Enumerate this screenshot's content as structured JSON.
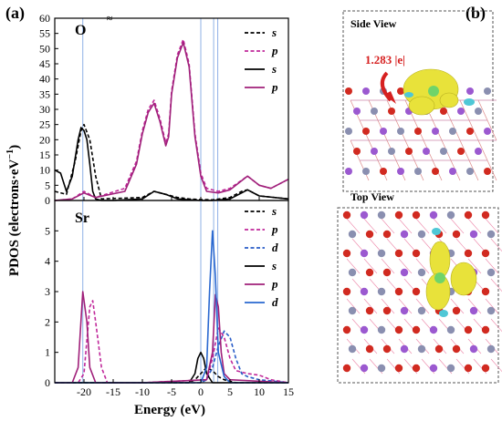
{
  "figure": {
    "label_a": "(a)",
    "label_b": "(b)"
  },
  "chart_data": [
    {
      "type": "line",
      "panel": "O",
      "xlim": [
        -25,
        15
      ],
      "ylim": [
        0,
        60
      ],
      "yticks": [
        0,
        5,
        10,
        15,
        20,
        25,
        30,
        35,
        40,
        45,
        50,
        55,
        60
      ],
      "xticks": [
        -20,
        -15,
        -10,
        -5,
        0,
        5,
        10,
        15
      ],
      "vlines": [
        -20.2,
        0,
        2.2,
        2.9
      ],
      "series": [
        {
          "name": "s",
          "style": "dashed",
          "color": "#000000",
          "x": [
            -25,
            -23,
            -21.5,
            -20.5,
            -20,
            -19,
            -18,
            -17,
            -10,
            -8,
            -6,
            -4,
            -2,
            0,
            2,
            5,
            7,
            8,
            10,
            15
          ],
          "y": [
            3,
            2,
            13,
            23,
            25,
            20,
            8,
            0.5,
            1,
            3,
            2,
            1,
            0.5,
            0.3,
            0.2,
            1,
            3,
            3.5,
            1.5,
            0.5
          ]
        },
        {
          "name": "p",
          "style": "dashed",
          "color": "#c0289a",
          "x": [
            -25,
            -22,
            -20,
            -18,
            -13,
            -11,
            -10,
            -9,
            -8,
            -7,
            -6,
            -5.5,
            -5,
            -4,
            -3,
            -2,
            -1,
            0,
            1,
            3,
            5,
            8,
            10,
            12,
            15
          ],
          "y": [
            0,
            0.5,
            3,
            1,
            4,
            13,
            23,
            30,
            33,
            27,
            19,
            22,
            36,
            48,
            53,
            45,
            22,
            9,
            4,
            3,
            4,
            8,
            5,
            4,
            7
          ]
        },
        {
          "name": "s",
          "style": "solid",
          "color": "#000000",
          "x": [
            -25,
            -24,
            -23,
            -22,
            -21,
            -20.5,
            -20,
            -19.5,
            -19,
            -18.5,
            -18,
            -17,
            -15,
            -10,
            -8,
            -6,
            -4,
            0,
            2,
            5,
            7,
            8,
            10,
            15
          ],
          "y": [
            10,
            9,
            3,
            8,
            20,
            24,
            23,
            20,
            12,
            3,
            0.5,
            0,
            0,
            0.5,
            3,
            2,
            0.5,
            0,
            0,
            0.5,
            2.5,
            3.5,
            1.5,
            0.5
          ]
        },
        {
          "name": "p",
          "style": "solid",
          "color": "#a0207a",
          "x": [
            -25,
            -22,
            -20,
            -18,
            -13,
            -11,
            -10,
            -9,
            -8,
            -7,
            -6,
            -5.5,
            -5,
            -4,
            -3,
            -2,
            -1,
            0,
            1,
            3,
            5,
            8,
            10,
            12,
            15
          ],
          "y": [
            0,
            0.5,
            2.5,
            1,
            3,
            12,
            22,
            29,
            32,
            26,
            18,
            21,
            35,
            47,
            52,
            44,
            21,
            8,
            3,
            2.5,
            3.5,
            8,
            5,
            4,
            7
          ]
        }
      ]
    },
    {
      "type": "line",
      "panel": "Sr",
      "xlim": [
        -25,
        15
      ],
      "ylim": [
        0,
        6
      ],
      "yticks": [
        0,
        1,
        2,
        3,
        4,
        5,
        6
      ],
      "xticks": [
        -20,
        -15,
        -10,
        -5,
        0,
        5,
        10,
        15
      ],
      "xlabel": "Energy (eV)",
      "vlines": [
        -20.2,
        0,
        2.2,
        2.9
      ],
      "series": [
        {
          "name": "s",
          "style": "dashed",
          "color": "#000000",
          "x": [
            -25,
            -2,
            -1,
            0,
            1,
            2,
            3,
            4,
            6,
            15
          ],
          "y": [
            0,
            0,
            0.1,
            0.3,
            0.5,
            0.4,
            0.2,
            0.1,
            0,
            0
          ]
        },
        {
          "name": "p",
          "style": "dashed",
          "color": "#c0289a",
          "x": [
            -25,
            -21,
            -20,
            -19,
            -18.5,
            -18,
            -17,
            -16,
            -10,
            1,
            2,
            3,
            4,
            5,
            6,
            8,
            10,
            12,
            15
          ],
          "y": [
            0,
            0,
            0.3,
            2.5,
            2.7,
            2,
            0.5,
            0,
            0,
            0.1,
            0.8,
            1.8,
            1.5,
            0.8,
            0.4,
            0.3,
            0.25,
            0.1,
            0
          ]
        },
        {
          "name": "d",
          "style": "dashed",
          "color": "#2a5dc8",
          "x": [
            -25,
            0,
            1,
            2,
            3,
            4,
            5,
            6,
            7,
            8,
            10,
            15
          ],
          "y": [
            0,
            0,
            0.1,
            0.5,
            1.2,
            1.7,
            1.5,
            0.8,
            0.3,
            0.2,
            0.1,
            0
          ]
        },
        {
          "name": "s",
          "style": "solid",
          "color": "#000000",
          "x": [
            -25,
            -2,
            -1,
            -0.5,
            0,
            0.5,
            1,
            2,
            3,
            15
          ],
          "y": [
            0,
            0,
            0.3,
            0.8,
            1,
            0.8,
            0.3,
            0,
            0,
            0
          ]
        },
        {
          "name": "p",
          "style": "solid",
          "color": "#a0207a",
          "x": [
            -25,
            -22,
            -21,
            -20.2,
            -19.5,
            -19,
            -18,
            -10,
            1,
            2,
            2.5,
            3,
            3.5,
            4,
            5,
            15
          ],
          "y": [
            0,
            0,
            0.5,
            3,
            2,
            0.5,
            0,
            0,
            0.1,
            1,
            2.9,
            2.5,
            1,
            0.3,
            0.1,
            0
          ]
        },
        {
          "name": "d",
          "style": "solid",
          "color": "#2a68d0",
          "x": [
            -25,
            0,
            1,
            1.5,
            2,
            2.5,
            3,
            4,
            5,
            15
          ],
          "y": [
            0,
            0,
            0.5,
            3,
            5,
            3.5,
            1,
            0.2,
            0,
            0
          ]
        }
      ]
    }
  ],
  "axes": {
    "ylabel": "PDOS (electrons·eV",
    "ylabel_sup": "−1",
    "ylabel_close": ")",
    "xlabel": "Energy (eV)",
    "panel_O": "O",
    "panel_Sr": "Sr",
    "top_break": "≈",
    "o_yticks": [
      "0",
      "5",
      "10",
      "15",
      "20",
      "25",
      "30",
      "35",
      "40",
      "45",
      "50",
      "55",
      "60"
    ],
    "sr_yticks": [
      "0",
      "1",
      "2",
      "3",
      "4",
      "5"
    ],
    "xticks": [
      "-20",
      "-15",
      "-10",
      "-5",
      "0",
      "5",
      "10",
      "15"
    ]
  },
  "legend_O": [
    {
      "label": "s",
      "style": "dashed",
      "color": "#000000"
    },
    {
      "label": "p",
      "style": "dashed",
      "color": "#c0289a"
    },
    {
      "label": "s",
      "style": "solid",
      "color": "#000000"
    },
    {
      "label": "p",
      "style": "solid",
      "color": "#a0207a"
    }
  ],
  "legend_Sr": [
    {
      "label": "s",
      "style": "dashed",
      "color": "#000000"
    },
    {
      "label": "p",
      "style": "dashed",
      "color": "#c0289a"
    },
    {
      "label": "d",
      "style": "dashed",
      "color": "#2a5dc8"
    },
    {
      "label": "s",
      "style": "solid",
      "color": "#000000"
    },
    {
      "label": "p",
      "style": "solid",
      "color": "#a0207a"
    },
    {
      "label": "d",
      "style": "solid",
      "color": "#2a68d0"
    }
  ],
  "panel_b": {
    "side_view": "Side View",
    "top_view": "Top View",
    "charge_transfer": "1.283 |e|",
    "colors": {
      "oxygen": "#d12a20",
      "strontium": "#9b59d0",
      "titanium": "#8a8fb0",
      "charge_accum": "#e8e23a",
      "charge_depl": "#4fc7d6"
    }
  }
}
